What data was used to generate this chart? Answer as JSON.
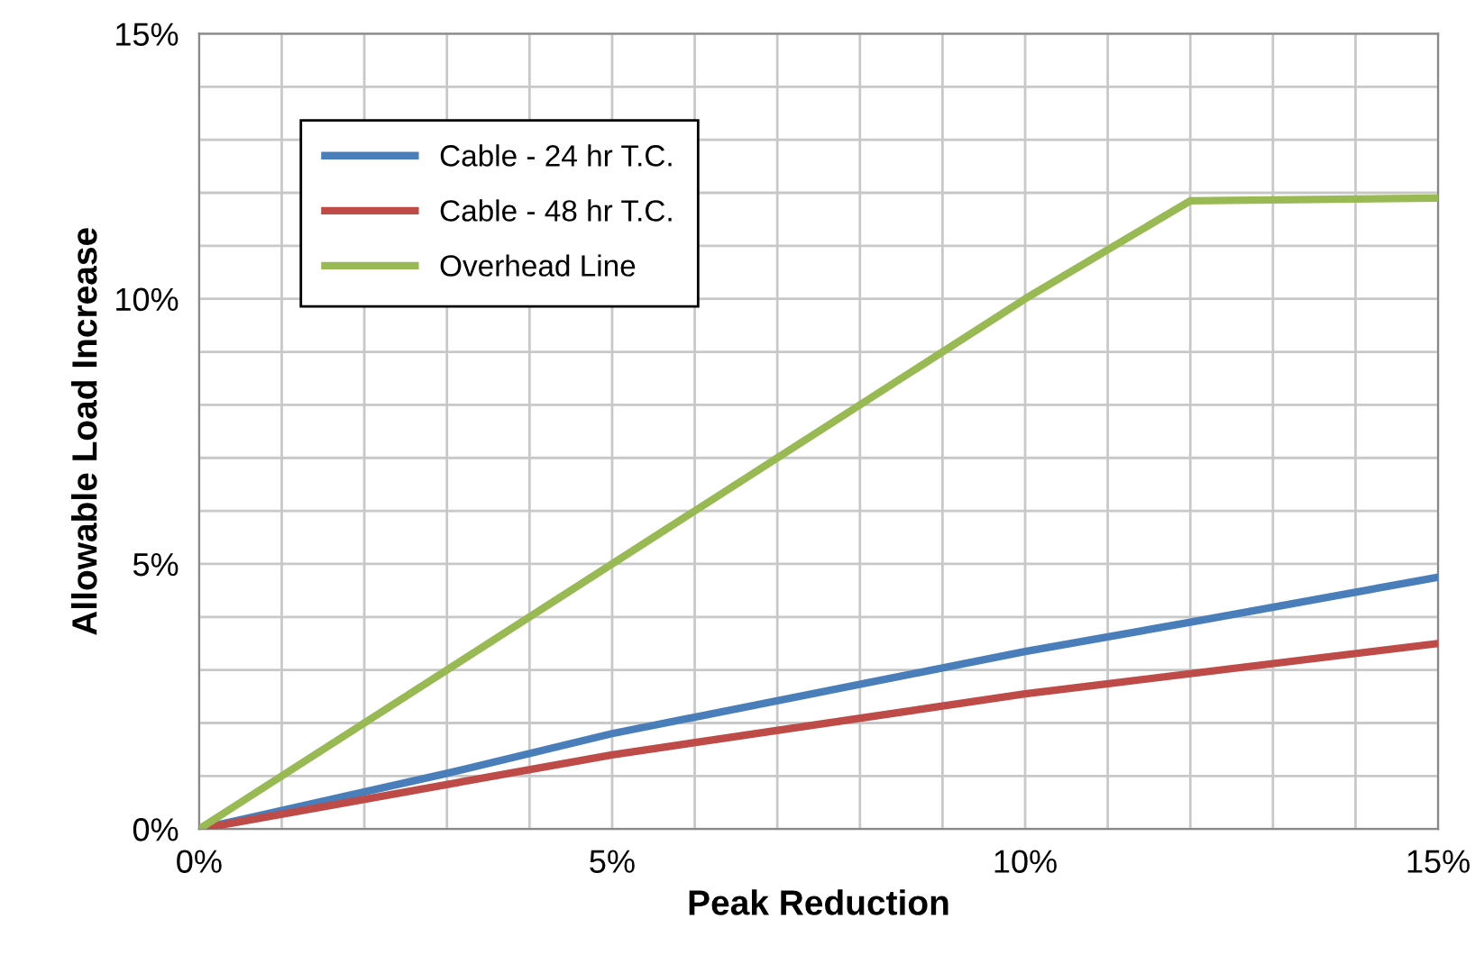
{
  "chart_data": {
    "type": "line",
    "xlabel": "Peak Reduction",
    "ylabel": "Allowable Load Increase",
    "series": [
      {
        "name": "Cable - 24 hr T.C.",
        "color": "#4a7ebb",
        "x": [
          0,
          3,
          5,
          10,
          12,
          15
        ],
        "values": [
          0,
          1.05,
          1.8,
          3.35,
          3.9,
          4.75
        ]
      },
      {
        "name": "Cable - 48 hr T.C.",
        "color": "#be4b48",
        "x": [
          0,
          5,
          10,
          15
        ],
        "values": [
          0,
          1.4,
          2.55,
          3.5
        ]
      },
      {
        "name": "Overhead Line",
        "color": "#98b954",
        "x": [
          0,
          10,
          12,
          15
        ],
        "values": [
          0,
          10,
          11.85,
          11.9
        ]
      }
    ],
    "xlim": [
      0,
      15
    ],
    "ylim": [
      0,
      15
    ],
    "xticks": [
      {
        "value": 0,
        "label": "0%"
      },
      {
        "value": 1,
        "label": null
      },
      {
        "value": 2,
        "label": null
      },
      {
        "value": 3,
        "label": null
      },
      {
        "value": 4,
        "label": null
      },
      {
        "value": 5,
        "label": "5%"
      },
      {
        "value": 6,
        "label": null
      },
      {
        "value": 7,
        "label": null
      },
      {
        "value": 8,
        "label": null
      },
      {
        "value": 9,
        "label": null
      },
      {
        "value": 10,
        "label": "10%"
      },
      {
        "value": 11,
        "label": null
      },
      {
        "value": 12,
        "label": null
      },
      {
        "value": 13,
        "label": null
      },
      {
        "value": 14,
        "label": null
      },
      {
        "value": 15,
        "label": "15%"
      }
    ],
    "yticks": [
      {
        "value": 0,
        "label": "0%"
      },
      {
        "value": 1,
        "label": null
      },
      {
        "value": 2,
        "label": null
      },
      {
        "value": 3,
        "label": null
      },
      {
        "value": 4,
        "label": null
      },
      {
        "value": 5,
        "label": "5%"
      },
      {
        "value": 6,
        "label": null
      },
      {
        "value": 7,
        "label": null
      },
      {
        "value": 8,
        "label": null
      },
      {
        "value": 9,
        "label": null
      },
      {
        "value": 10,
        "label": "10%"
      },
      {
        "value": 11,
        "label": null
      },
      {
        "value": 12,
        "label": null
      },
      {
        "value": 13,
        "label": null
      },
      {
        "value": 14,
        "label": null
      },
      {
        "value": 15,
        "label": "15%"
      }
    ],
    "grid": true,
    "legend": "top left",
    "marker": "none",
    "line_style": "solid"
  }
}
